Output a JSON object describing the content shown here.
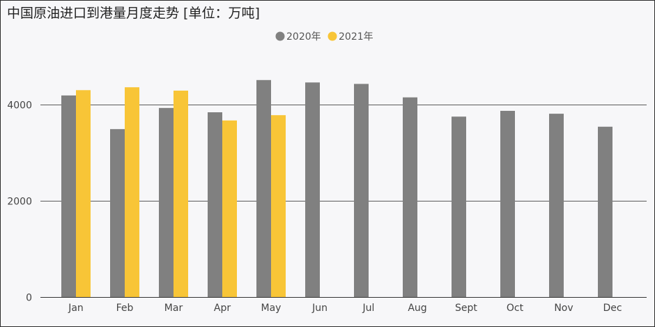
{
  "chart_data": {
    "type": "bar",
    "title": "中国原油进口到港量月度走势 [单位：万吨]",
    "categories": [
      "Jan",
      "Feb",
      "Mar",
      "Apr",
      "May",
      "Jun",
      "Jul",
      "Aug",
      "Sept",
      "Oct",
      "Nov",
      "Dec"
    ],
    "series": [
      {
        "name": "2020年",
        "color": "#808080",
        "values": [
          4190,
          3490,
          3930,
          3840,
          4510,
          4460,
          4430,
          4150,
          3750,
          3870,
          3810,
          3540
        ]
      },
      {
        "name": "2021年",
        "color": "#f8c537",
        "values": [
          4300,
          4360,
          4290,
          3670,
          3780,
          null,
          null,
          null,
          null,
          null,
          null,
          null
        ]
      }
    ],
    "yticks": [
      0,
      2000,
      4000
    ],
    "ylim": [
      0,
      5000
    ],
    "grid": true,
    "legend": "top-center",
    "colors": {
      "background": "#f7f7f9",
      "gridline": "#5a5a5a",
      "axis": "#333333"
    }
  }
}
